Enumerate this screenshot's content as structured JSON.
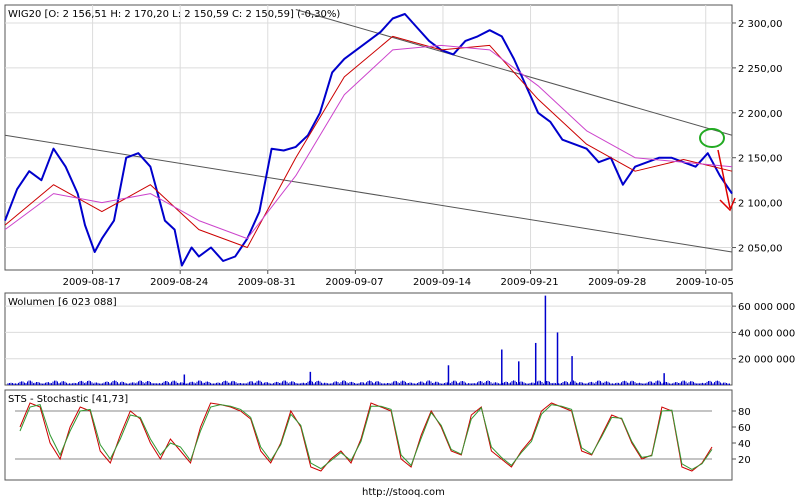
{
  "footer": {
    "url": "http://stooq.com"
  },
  "chart_data": [
    {
      "id": "price",
      "type": "line",
      "title": "WIG20 [O: 2 156,51  H: 2 170,20  L: 2 150,59  C: 2 150,59] (-0,30%)",
      "x_labels": [
        "2009-08-17",
        "2009-08-24",
        "2009-08-31",
        "2009-09-07",
        "2009-09-14",
        "2009-09-21",
        "2009-09-28",
        "2009-10-05"
      ],
      "ylim": [
        2025,
        2320
      ],
      "ytick_values": [
        2050,
        2100,
        2150,
        2200,
        2250,
        2300
      ],
      "ytick_labels": [
        "2 050,00",
        "2 100,00",
        "2 150,00",
        "2 200,00",
        "2 250,00",
        "2 300,00"
      ],
      "x_range": [
        0,
        30
      ],
      "series": [
        {
          "color": "#0000cc",
          "points": [
            [
              0,
              2080
            ],
            [
              0.5,
              2115
            ],
            [
              1,
              2135
            ],
            [
              1.5,
              2125
            ],
            [
              2,
              2160
            ],
            [
              2.5,
              2140
            ],
            [
              3,
              2110
            ],
            [
              3.3,
              2075
            ],
            [
              3.7,
              2045
            ],
            [
              4,
              2060
            ],
            [
              4.5,
              2080
            ],
            [
              5,
              2150
            ],
            [
              5.5,
              2155
            ],
            [
              6,
              2140
            ],
            [
              6.3,
              2110
            ],
            [
              6.6,
              2080
            ],
            [
              7,
              2070
            ],
            [
              7.3,
              2030
            ],
            [
              7.7,
              2050
            ],
            [
              8,
              2040
            ],
            [
              8.5,
              2050
            ],
            [
              9,
              2035
            ],
            [
              9.5,
              2040
            ],
            [
              10,
              2060
            ],
            [
              10.5,
              2090
            ],
            [
              11,
              2160
            ],
            [
              11.5,
              2158
            ],
            [
              12,
              2162
            ],
            [
              12.5,
              2175
            ],
            [
              13,
              2200
            ],
            [
              13.5,
              2245
            ],
            [
              14,
              2260
            ],
            [
              14.5,
              2270
            ],
            [
              15,
              2280
            ],
            [
              15.5,
              2290
            ],
            [
              16,
              2305
            ],
            [
              16.5,
              2310
            ],
            [
              17,
              2295
            ],
            [
              17.5,
              2280
            ],
            [
              18,
              2270
            ],
            [
              18.5,
              2265
            ],
            [
              19,
              2280
            ],
            [
              19.5,
              2285
            ],
            [
              20,
              2292
            ],
            [
              20.5,
              2285
            ],
            [
              21,
              2260
            ],
            [
              21.5,
              2230
            ],
            [
              22,
              2200
            ],
            [
              22.5,
              2190
            ],
            [
              23,
              2170
            ],
            [
              23.5,
              2165
            ],
            [
              24,
              2160
            ],
            [
              24.5,
              2145
            ],
            [
              25,
              2150
            ],
            [
              25.5,
              2120
            ],
            [
              26,
              2140
            ],
            [
              26.5,
              2145
            ],
            [
              27,
              2150
            ],
            [
              27.5,
              2150
            ],
            [
              28,
              2145
            ],
            [
              28.5,
              2140
            ],
            [
              29,
              2155
            ],
            [
              29.5,
              2130
            ],
            [
              30,
              2110
            ]
          ]
        },
        {
          "color": "#cc0000",
          "points": [
            [
              0,
              2075
            ],
            [
              2,
              2120
            ],
            [
              4,
              2090
            ],
            [
              6,
              2120
            ],
            [
              8,
              2070
            ],
            [
              10,
              2050
            ],
            [
              12,
              2150
            ],
            [
              14,
              2240
            ],
            [
              16,
              2285
            ],
            [
              18,
              2270
            ],
            [
              20,
              2275
            ],
            [
              22,
              2215
            ],
            [
              24,
              2165
            ],
            [
              26,
              2135
            ],
            [
              28,
              2148
            ],
            [
              30,
              2135
            ]
          ]
        },
        {
          "color": "#cc44cc",
          "points": [
            [
              0,
              2070
            ],
            [
              2,
              2110
            ],
            [
              4,
              2100
            ],
            [
              6,
              2110
            ],
            [
              8,
              2080
            ],
            [
              10,
              2060
            ],
            [
              12,
              2130
            ],
            [
              14,
              2220
            ],
            [
              16,
              2270
            ],
            [
              18,
              2275
            ],
            [
              20,
              2270
            ],
            [
              22,
              2230
            ],
            [
              24,
              2180
            ],
            [
              26,
              2150
            ],
            [
              28,
              2145
            ],
            [
              30,
              2140
            ]
          ]
        }
      ],
      "trendlines": [
        {
          "color": "#555555",
          "points": [
            [
              0,
              2175
            ],
            [
              30,
              2045
            ]
          ]
        },
        {
          "color": "#555555",
          "points": [
            [
              12,
              2315
            ],
            [
              30,
              2175
            ]
          ]
        }
      ]
    },
    {
      "id": "volume",
      "type": "bar",
      "title": "Wolumen [6 023 088]",
      "ylim": [
        0,
        70000000
      ],
      "ytick_values": [
        20000000,
        40000000,
        60000000
      ],
      "ytick_labels": [
        "20 000 000",
        "40 000 000",
        "60 000 000"
      ],
      "color": "#0000cc",
      "spikes": [
        {
          "x": 20.5,
          "value": 27000000
        },
        {
          "x": 21.2,
          "value": 18000000
        },
        {
          "x": 21.9,
          "value": 32000000
        },
        {
          "x": 22.3,
          "value": 68000000
        },
        {
          "x": 22.8,
          "value": 40000000
        },
        {
          "x": 23.4,
          "value": 22000000
        },
        {
          "x": 18.3,
          "value": 15000000
        },
        {
          "x": 12.6,
          "value": 10000000
        },
        {
          "x": 7.4,
          "value": 8000000
        },
        {
          "x": 27.2,
          "value": 9000000
        }
      ],
      "base_level": 3500000
    },
    {
      "id": "stochastic",
      "type": "line",
      "title": "STS - Stochastic [41,73]",
      "ylim": [
        0,
        100
      ],
      "ytick_values": [
        20,
        40,
        60,
        80
      ],
      "ytick_labels": [
        "20",
        "40",
        "60",
        "80"
      ],
      "reference_lines": [
        20,
        80
      ],
      "series": [
        {
          "color": "#cc0000",
          "values": [
            60,
            90,
            85,
            40,
            20,
            60,
            85,
            80,
            30,
            15,
            50,
            80,
            70,
            40,
            20,
            45,
            30,
            15,
            60,
            90,
            88,
            85,
            80,
            70,
            30,
            15,
            40,
            80,
            60,
            10,
            5,
            20,
            30,
            15,
            45,
            90,
            85,
            80,
            20,
            10,
            50,
            80,
            60,
            30,
            25,
            75,
            85,
            30,
            20,
            10,
            30,
            45,
            80,
            90,
            85,
            80,
            30,
            25,
            50,
            75,
            70,
            40,
            20,
            25,
            85,
            80,
            10,
            5,
            15,
            35
          ]
        },
        {
          "color": "#339933",
          "values": [
            55,
            85,
            88,
            50,
            25,
            55,
            80,
            82,
            38,
            20,
            45,
            75,
            72,
            45,
            25,
            40,
            35,
            18,
            55,
            85,
            88,
            86,
            82,
            72,
            35,
            18,
            38,
            76,
            62,
            15,
            8,
            18,
            28,
            18,
            42,
            86,
            86,
            82,
            25,
            12,
            46,
            78,
            62,
            32,
            26,
            70,
            84,
            35,
            22,
            12,
            28,
            42,
            76,
            88,
            86,
            82,
            34,
            26,
            48,
            72,
            71,
            42,
            22,
            24,
            80,
            81,
            14,
            7,
            14,
            32
          ]
        }
      ]
    }
  ]
}
